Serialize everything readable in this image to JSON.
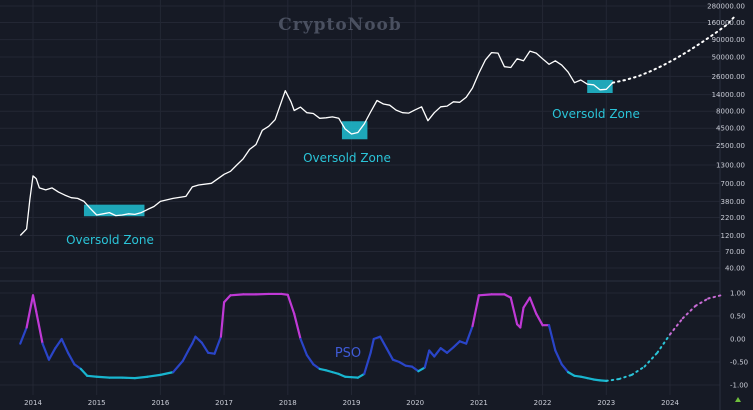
{
  "watermark": "CryptoNoob",
  "colors": {
    "background": "#161a25",
    "grid": "#232734",
    "price_line": "#ffffff",
    "zone_fill": "#1fb3c6",
    "zone_text": "#2bc4d8",
    "pso_high": "#c039d6",
    "pso_mid": "#2a45c8",
    "pso_low": "#18b5cf",
    "projection_price": "#ffffff",
    "projection_pso_low": "#2bc4d8",
    "projection_pso_high": "#c86bd6",
    "tick_text": "#c9ccd6"
  },
  "labels": {
    "zone1": "Oversold Zone",
    "zone2": "Oversold Zone",
    "zone3": "Oversold Zone",
    "pso": "PSO"
  },
  "chart_data": [
    {
      "type": "line",
      "title": "",
      "xlabel": "",
      "ylabel": "",
      "yscale": "log",
      "grid": true,
      "x_ticks": [
        "2014",
        "2015",
        "2016",
        "2017",
        "2018",
        "2019",
        "2020",
        "2021",
        "2022",
        "2023",
        "2024"
      ],
      "y_ticks": [
        "280000.00",
        "160000.00",
        "90000.00",
        "50000.00",
        "26000.00",
        "14000.00",
        "8000.00",
        "4500.00",
        "2500.00",
        "1300.00",
        "700.00",
        "380.00",
        "220.00",
        "120.00",
        "70.00",
        "40.00"
      ],
      "ylim": [
        30,
        300000
      ],
      "series": [
        {
          "style": "solid",
          "x": [
            2013.8,
            2013.9,
            2013.95,
            2014.0,
            2014.05,
            2014.1,
            2014.2,
            2014.3,
            2014.4,
            2014.5,
            2014.6,
            2014.7,
            2014.8,
            2014.9,
            2015.0,
            2015.1,
            2015.2,
            2015.3,
            2015.4,
            2015.5,
            2015.6,
            2015.7,
            2015.8,
            2015.9,
            2016.0,
            2016.2,
            2016.4,
            2016.5,
            2016.6,
            2016.8,
            2017.0,
            2017.1,
            2017.2,
            2017.3,
            2017.4,
            2017.5,
            2017.6,
            2017.7,
            2017.8,
            2017.9,
            2017.96,
            2018.05,
            2018.1,
            2018.2,
            2018.3,
            2018.4,
            2018.5,
            2018.6,
            2018.7,
            2018.8,
            2018.9,
            2019.0,
            2019.1,
            2019.2,
            2019.3,
            2019.4,
            2019.5,
            2019.6,
            2019.7,
            2019.8,
            2019.9,
            2020.0,
            2020.1,
            2020.2,
            2020.3,
            2020.4,
            2020.5,
            2020.6,
            2020.7,
            2020.8,
            2020.9,
            2021.0,
            2021.1,
            2021.2,
            2021.3,
            2021.4,
            2021.5,
            2021.6,
            2021.7,
            2021.8,
            2021.9,
            2022.0,
            2022.1,
            2022.2,
            2022.3,
            2022.4,
            2022.5,
            2022.6,
            2022.7,
            2022.8,
            2022.9,
            2023.0,
            2023.1
          ],
          "y": [
            120,
            150,
            400,
            900,
            820,
            600,
            560,
            600,
            520,
            470,
            430,
            420,
            380,
            300,
            240,
            250,
            260,
            235,
            240,
            250,
            245,
            260,
            290,
            320,
            380,
            420,
            450,
            620,
            660,
            700,
            950,
            1050,
            1300,
            1600,
            2200,
            2600,
            4200,
            4800,
            6000,
            11000,
            16000,
            11000,
            8200,
            9200,
            7600,
            7400,
            6300,
            6400,
            6600,
            6300,
            4400,
            3700,
            3900,
            5200,
            7800,
            11500,
            10200,
            9800,
            8300,
            7600,
            7500,
            8400,
            9300,
            5800,
            7600,
            9300,
            9500,
            11000,
            10800,
            12800,
            17500,
            29000,
            45000,
            58000,
            57000,
            36000,
            35000,
            47000,
            44000,
            61000,
            57000,
            47000,
            39000,
            44000,
            38000,
            30000,
            21000,
            23000,
            20000,
            19500,
            16500,
            16800,
            21000
          ]
        },
        {
          "style": "dotted",
          "x": [
            2023.1,
            2023.3,
            2023.5,
            2023.7,
            2023.9,
            2024.1,
            2024.3,
            2024.5,
            2024.7,
            2024.9,
            2025.0
          ],
          "y": [
            21000,
            23000,
            26000,
            31000,
            38000,
            48000,
            62000,
            82000,
            110000,
            150000,
            190000
          ]
        }
      ],
      "zones": [
        {
          "x": [
            2014.8,
            2015.75
          ],
          "y": [
            230,
            340
          ]
        },
        {
          "x": [
            2018.85,
            2019.25
          ],
          "y": [
            3100,
            5700
          ]
        },
        {
          "x": [
            2022.7,
            2023.1
          ],
          "y": [
            14800,
            23000
          ]
        }
      ]
    },
    {
      "type": "line",
      "title": "",
      "xlabel": "",
      "ylabel": "",
      "grid": true,
      "y_ticks": [
        "1.00",
        "0.50",
        "0.00",
        "-0.50",
        "-1.00"
      ],
      "ylim": [
        -1.1,
        1.2
      ],
      "series": [
        {
          "name": "PSO",
          "style": "solid",
          "x": [
            2013.8,
            2013.9,
            2014.0,
            2014.05,
            2014.15,
            2014.25,
            2014.35,
            2014.45,
            2014.55,
            2014.65,
            2014.75,
            2014.85,
            2015.0,
            2015.2,
            2015.4,
            2015.6,
            2015.8,
            2016.0,
            2016.2,
            2016.35,
            2016.45,
            2016.5,
            2016.55,
            2016.65,
            2016.75,
            2016.85,
            2016.95,
            2017.0,
            2017.1,
            2017.3,
            2017.5,
            2017.7,
            2017.9,
            2018.0,
            2018.1,
            2018.2,
            2018.3,
            2018.4,
            2018.5,
            2018.6,
            2018.7,
            2018.8,
            2018.9,
            2019.0,
            2019.1,
            2019.2,
            2019.3,
            2019.35,
            2019.45,
            2019.55,
            2019.65,
            2019.75,
            2019.85,
            2019.95,
            2020.05,
            2020.15,
            2020.22,
            2020.3,
            2020.4,
            2020.5,
            2020.6,
            2020.7,
            2020.8,
            2020.9,
            2021.0,
            2021.2,
            2021.4,
            2021.5,
            2021.6,
            2021.65,
            2021.7,
            2021.8,
            2021.9,
            2022.0,
            2022.1,
            2022.2,
            2022.3,
            2022.4,
            2022.5,
            2022.6,
            2022.7,
            2022.8,
            2022.9,
            2023.0
          ],
          "y": [
            -0.1,
            0.25,
            0.95,
            0.6,
            -0.1,
            -0.45,
            -0.2,
            0.0,
            -0.3,
            -0.55,
            -0.65,
            -0.8,
            -0.82,
            -0.84,
            -0.84,
            -0.85,
            -0.82,
            -0.78,
            -0.72,
            -0.48,
            -0.22,
            -0.1,
            0.05,
            -0.08,
            -0.3,
            -0.32,
            0.05,
            0.8,
            0.95,
            0.97,
            0.97,
            0.98,
            0.98,
            0.96,
            0.55,
            0.0,
            -0.35,
            -0.55,
            -0.65,
            -0.68,
            -0.72,
            -0.76,
            -0.82,
            -0.83,
            -0.84,
            -0.76,
            -0.3,
            0.0,
            0.05,
            -0.2,
            -0.45,
            -0.5,
            -0.58,
            -0.6,
            -0.7,
            -0.62,
            -0.25,
            -0.38,
            -0.2,
            -0.3,
            -0.18,
            -0.05,
            -0.1,
            0.28,
            0.95,
            0.97,
            0.97,
            0.9,
            0.32,
            0.25,
            0.68,
            0.9,
            0.55,
            0.3,
            0.3,
            -0.25,
            -0.55,
            -0.72,
            -0.8,
            -0.82,
            -0.85,
            -0.88,
            -0.9,
            -0.91
          ]
        },
        {
          "style": "dotted",
          "x": [
            2023.0,
            2023.2,
            2023.4,
            2023.6,
            2023.8,
            2024.0,
            2024.2,
            2024.4,
            2024.6,
            2024.8
          ],
          "y": [
            -0.91,
            -0.87,
            -0.78,
            -0.6,
            -0.3,
            0.1,
            0.45,
            0.72,
            0.88,
            0.95
          ]
        }
      ]
    }
  ]
}
